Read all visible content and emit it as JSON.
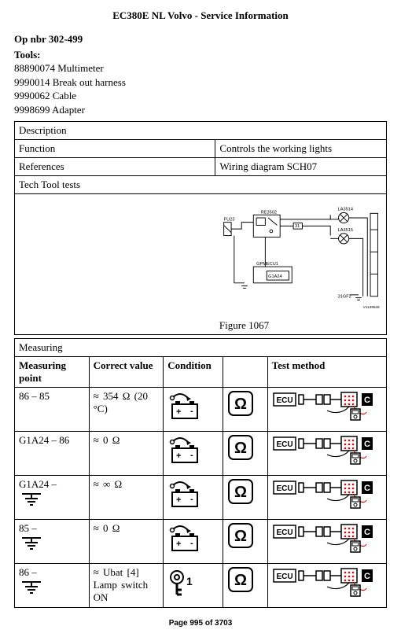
{
  "title": "EC380E NL Volvo - Service Information",
  "op_nbr": "Op nbr 302-499",
  "tools_label": "Tools:",
  "tools": [
    "88890074 Multimeter",
    "9990014 Break out harness",
    "9990062 Cable",
    "9998699 Adapter"
  ],
  "desc_header": "Description",
  "rows_desc": [
    {
      "left": "Function",
      "right": "Controls the working lights"
    },
    {
      "left": "References",
      "right": "Wiring diagram SCH07"
    }
  ],
  "tech_tool_tests": "Tech Tool tests",
  "diagram": {
    "labels": {
      "fu23": "FU23",
      "re3502": "RE3502",
      "la3514": "LA3514",
      "la3515": "LA3515",
      "gpmecu1": "GPMECU1",
      "g1a24": "G1A24",
      "n31": "31",
      "d31gf2": "31GF2",
      "vref": "V1139528"
    },
    "colors": {
      "stroke": "#000000",
      "fill_bg": "#ffffff",
      "red": "#d01010"
    }
  },
  "figure_caption": "Figure 1067",
  "measuring_header": "Measuring",
  "columns": {
    "c1": "Measuring point",
    "c2": "Correct value",
    "c3": "Condition",
    "c4": "",
    "c5": "Test method"
  },
  "measure_rows": [
    {
      "mp": "86 – 85",
      "cv": "≈ 354 Ω (20 °C)",
      "cond": "battery",
      "sym": "ohm",
      "tm": "ecu"
    },
    {
      "mp": "G1A24 – 86",
      "cv": "≈ 0 Ω",
      "cond": "battery",
      "sym": "ohm",
      "tm": "ecu"
    },
    {
      "mp": "G1A24 –",
      "mp_icon": "ground",
      "cv": "≈ ∞ Ω",
      "cond": "battery",
      "sym": "ohm",
      "tm": "ecu"
    },
    {
      "mp": "85 –",
      "mp_icon": "ground",
      "cv": "≈ 0 Ω",
      "cond": "battery",
      "sym": "ohm",
      "tm": "ecu"
    },
    {
      "mp": "86 –",
      "mp_icon": "ground",
      "cv": "≈ Ubat [4]\nLamp switch ON",
      "cond": "key",
      "sym": "ohm",
      "tm": "ecu"
    }
  ],
  "footer": "Page 995 of 3703"
}
